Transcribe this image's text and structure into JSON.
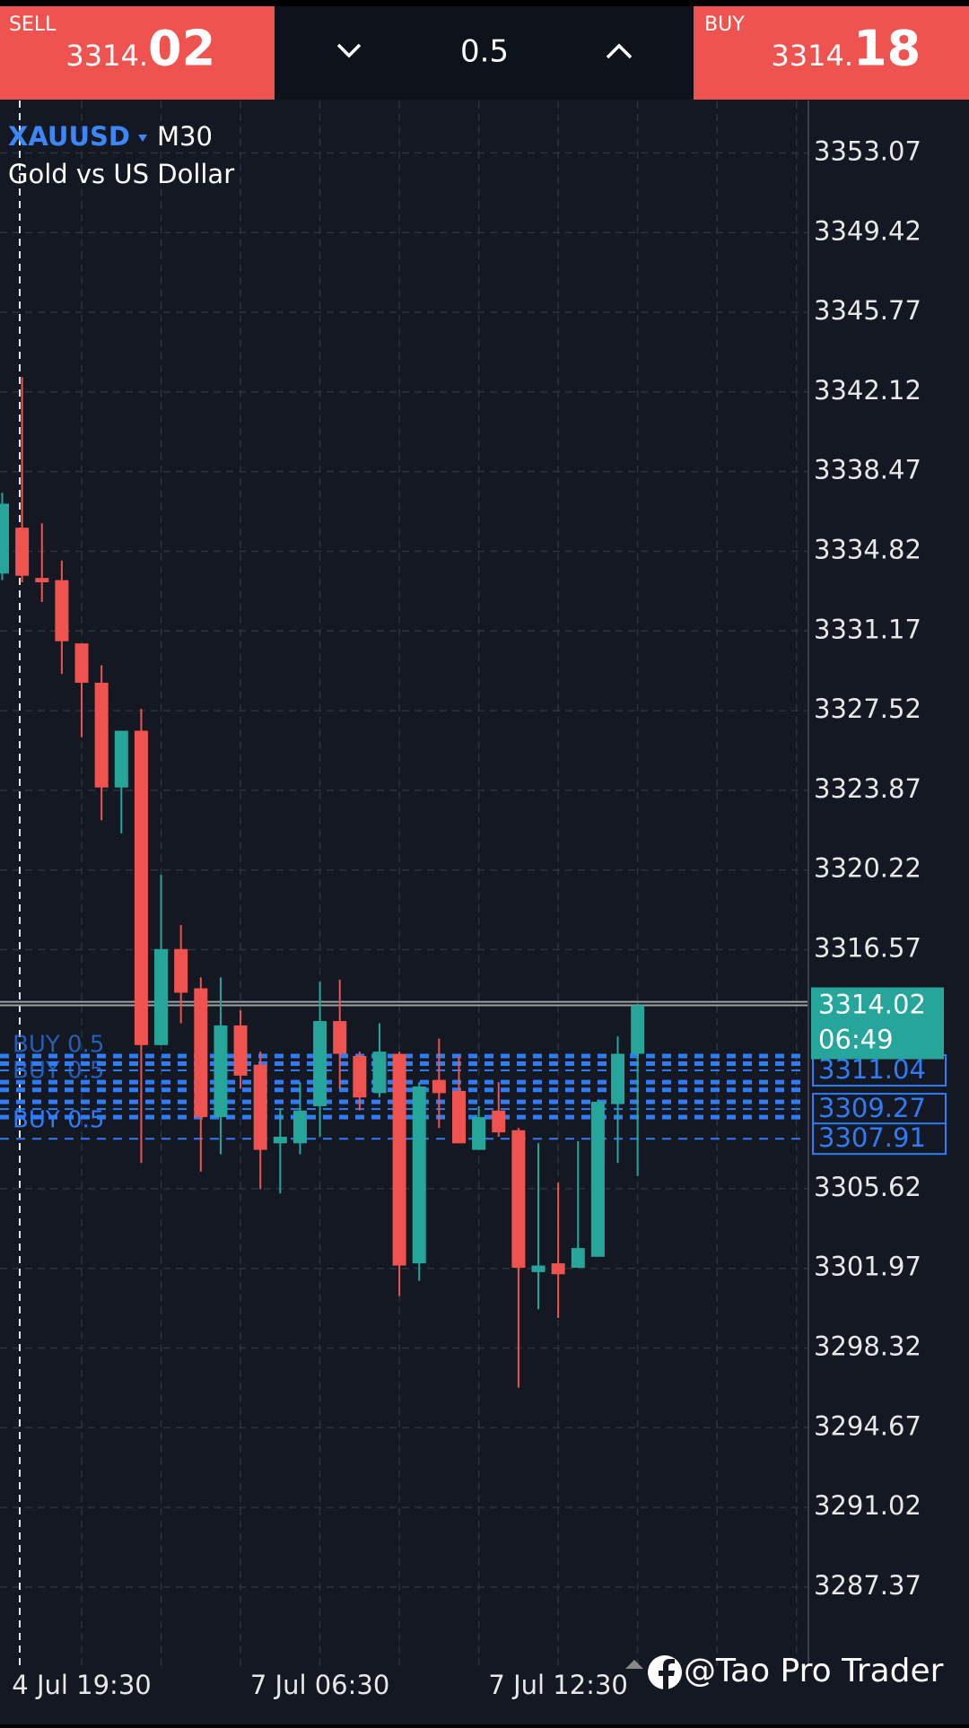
{
  "trade_panel": {
    "sell_label": "SELL",
    "sell_price_main": "3314.",
    "sell_price_big": "02",
    "lot": "0.5",
    "buy_label": "BUY",
    "buy_price_main": "3314.",
    "buy_price_big": "18"
  },
  "symbol": {
    "ticker": "XAUUSD",
    "timeframe": "M30",
    "description": "Gold vs US Dollar"
  },
  "watermark": "@Tao Pro Trader",
  "chart_data": {
    "type": "candlestick",
    "categories": [
      null,
      null,
      null,
      null,
      "4 Jul 19:30",
      null,
      null,
      null,
      null,
      null,
      null,
      null,
      null,
      null,
      null,
      null,
      "7 Jul 06:30",
      null,
      null,
      null,
      null,
      null,
      null,
      null,
      null,
      null,
      null,
      null,
      "7 Jul 12:30",
      null,
      null,
      null,
      null
    ],
    "open": [
      3333.8,
      3335.9,
      3333.6,
      3333.5,
      3330.6,
      3328.8,
      3324.0,
      3326.6,
      3312.2,
      3316.6,
      3314.8,
      3308.9,
      3313.1,
      3311.3,
      3307.7,
      3307.7,
      3309.4,
      3313.3,
      3311.7,
      3310.0,
      3311.8,
      3302.2,
      3310.6,
      3310.1,
      3307.4,
      3309.2,
      3308.3,
      3301.8,
      3302.2,
      3302.0,
      3302.5,
      3309.5,
      3311.8
    ],
    "high": [
      3337.5,
      3342.8,
      3336.1,
      3334.4,
      3330.6,
      3329.6,
      3326.6,
      3327.6,
      3320.0,
      3317.7,
      3315.3,
      3315.3,
      3313.8,
      3311.9,
      3309.3,
      3310.5,
      3315.1,
      3315.2,
      3311.9,
      3313.2,
      3311.9,
      3310.5,
      3312.5,
      3311.7,
      3309.4,
      3310.5,
      3308.4,
      3307.7,
      3305.9,
      3307.8,
      3309.7,
      3312.6,
      3314.1
    ],
    "low": [
      3333.5,
      3333.4,
      3332.5,
      3329.2,
      3326.3,
      3322.5,
      3321.9,
      3306.8,
      3312.2,
      3313.2,
      3306.4,
      3307.2,
      3310.2,
      3305.6,
      3305.4,
      3307.2,
      3308.0,
      3310.2,
      3309.2,
      3309.8,
      3300.7,
      3301.4,
      3308.4,
      3307.7,
      3307.4,
      3308.0,
      3296.5,
      3300.1,
      3299.7,
      3302.0,
      3302.5,
      3306.8,
      3306.2
    ],
    "close": [
      3337.0,
      3333.7,
      3333.4,
      3330.7,
      3328.8,
      3324.0,
      3326.6,
      3312.2,
      3316.6,
      3314.6,
      3308.9,
      3313.1,
      3310.8,
      3307.4,
      3308.0,
      3309.2,
      3313.3,
      3311.8,
      3309.8,
      3311.9,
      3302.1,
      3310.3,
      3310.0,
      3307.7,
      3308.9,
      3308.2,
      3302.0,
      3302.1,
      3301.7,
      3302.9,
      3309.6,
      3311.8,
      3314.02
    ],
    "up_color": "#26a69a",
    "down_color": "#ef5350",
    "ylim": [
      3283.75,
      3355.44
    ],
    "yticks": [
      3287.37,
      3291.02,
      3294.67,
      3298.32,
      3301.97,
      3305.62,
      3316.57,
      3320.22,
      3323.87,
      3327.52,
      3331.17,
      3334.82,
      3338.47,
      3342.12,
      3345.77,
      3349.42,
      3353.07
    ],
    "grid": true,
    "bid": 3314.02,
    "ask": 3314.18,
    "countdown": "06:49",
    "order_text": "BUY 0.5",
    "order_color": "#2f7cf6",
    "order_levels": [
      3311.7,
      3311.35,
      3310.5,
      3310.15,
      3309.6,
      3308.9
    ],
    "order_tags": [
      3311.04,
      3309.27,
      3307.91
    ]
  }
}
